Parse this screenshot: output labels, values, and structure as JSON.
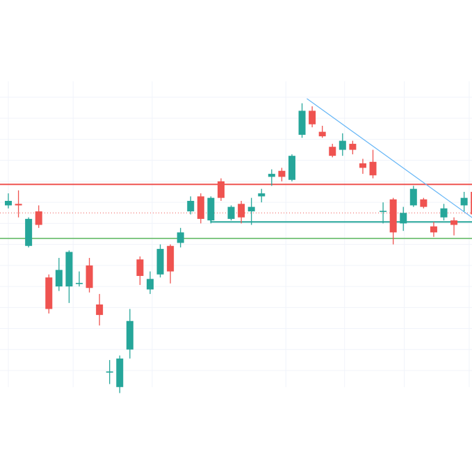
{
  "chart_data": {
    "type": "candlestick",
    "title": "",
    "xlabel": "",
    "ylabel": "",
    "grid": true,
    "ylim": [
      0,
      100
    ],
    "y_gridlines": [
      3,
      10,
      17,
      24,
      31,
      38,
      45,
      52,
      59,
      66,
      73,
      80,
      87,
      94,
      100
    ],
    "x_gridlines": [
      0.0,
      6.4,
      14.2,
      27.4,
      33.2,
      39.1,
      45.5
    ],
    "colors": {
      "up": "#26a69a",
      "down": "#ef5350"
    },
    "candles": [
      {
        "x": 0,
        "open": 58.0,
        "close": 59.5,
        "high": 62.0,
        "low": 57.0
      },
      {
        "x": 1,
        "open": 58.5,
        "close": 58.0,
        "high": 63.0,
        "low": 54.0
      },
      {
        "x": 2,
        "open": 44.5,
        "close": 53.5,
        "high": 54.0,
        "low": 44.0
      },
      {
        "x": 3,
        "open": 56.0,
        "close": 51.5,
        "high": 58.0,
        "low": 50.5
      },
      {
        "x": 4,
        "open": 34.0,
        "close": 23.5,
        "high": 35.0,
        "low": 22.0
      },
      {
        "x": 5,
        "open": 31.0,
        "close": 36.5,
        "high": 40.5,
        "low": 29.5
      },
      {
        "x": 6,
        "open": 31.0,
        "close": 42.5,
        "high": 43.0,
        "low": 25.5
      },
      {
        "x": 7,
        "open": 32.0,
        "close": 32.0,
        "high": 36.0,
        "low": 31.0
      },
      {
        "x": 8,
        "open": 38.0,
        "close": 30.5,
        "high": 40.5,
        "low": 29.0
      },
      {
        "x": 9,
        "open": 25.0,
        "close": 21.5,
        "high": 28.5,
        "low": 18.0
      },
      {
        "x": 10,
        "open": 2.5,
        "close": 2.5,
        "high": 6.5,
        "low": -1.5
      },
      {
        "x": 11,
        "open": -2.5,
        "close": 7.0,
        "high": 8.0,
        "low": -4.5
      },
      {
        "x": 12,
        "open": 10.0,
        "close": 19.5,
        "high": 23.5,
        "low": 7.0
      },
      {
        "x": 13,
        "open": 40.0,
        "close": 34.5,
        "high": 41.0,
        "low": 31.5
      },
      {
        "x": 14,
        "open": 30.0,
        "close": 33.5,
        "high": 36.0,
        "low": 28.5
      },
      {
        "x": 15,
        "open": 35.0,
        "close": 43.5,
        "high": 45.0,
        "low": 34.0
      },
      {
        "x": 16,
        "open": 44.5,
        "close": 36.0,
        "high": 45.0,
        "low": 32.0
      },
      {
        "x": 17,
        "open": 45.5,
        "close": 49.0,
        "high": 50.5,
        "low": 44.0
      },
      {
        "x": 18,
        "open": 56.0,
        "close": 59.5,
        "high": 61.0,
        "low": 55.0
      },
      {
        "x": 19,
        "open": 61.0,
        "close": 53.5,
        "high": 62.0,
        "low": 52.0
      },
      {
        "x": 20,
        "open": 53.0,
        "close": 60.5,
        "high": 61.0,
        "low": 52.0
      },
      {
        "x": 21,
        "open": 66.0,
        "close": 60.5,
        "high": 67.0,
        "low": 59.5
      },
      {
        "x": 22,
        "open": 53.5,
        "close": 57.5,
        "high": 58.0,
        "low": 53.0
      },
      {
        "x": 23,
        "open": 58.5,
        "close": 54.0,
        "high": 59.5,
        "low": 52.0
      },
      {
        "x": 24,
        "open": 56.0,
        "close": 57.5,
        "high": 60.5,
        "low": 51.5
      },
      {
        "x": 25,
        "open": 61.0,
        "close": 62.0,
        "high": 63.5,
        "low": 59.0
      },
      {
        "x": 26,
        "open": 67.5,
        "close": 68.5,
        "high": 70.0,
        "low": 64.5
      },
      {
        "x": 27,
        "open": 69.5,
        "close": 67.5,
        "high": 70.5,
        "low": 66.0
      },
      {
        "x": 28,
        "open": 66.5,
        "close": 74.5,
        "high": 75.0,
        "low": 66.0
      },
      {
        "x": 29,
        "open": 81.5,
        "close": 89.5,
        "high": 92.0,
        "low": 80.5
      },
      {
        "x": 30,
        "open": 89.5,
        "close": 85.0,
        "high": 91.0,
        "low": 84.0
      },
      {
        "x": 31,
        "open": 82.5,
        "close": 81.0,
        "high": 84.5,
        "low": 80.5
      },
      {
        "x": 32,
        "open": 77.5,
        "close": 74.5,
        "high": 78.5,
        "low": 74.0
      },
      {
        "x": 33,
        "open": 76.5,
        "close": 79.5,
        "high": 82.0,
        "low": 74.5
      },
      {
        "x": 34,
        "open": 78.5,
        "close": 76.5,
        "high": 79.5,
        "low": 75.0
      },
      {
        "x": 35,
        "open": 72.0,
        "close": 70.5,
        "high": 73.5,
        "low": 68.5
      },
      {
        "x": 36,
        "open": 72.5,
        "close": 68.0,
        "high": 76.5,
        "low": 67.0
      },
      {
        "x": 37,
        "open": 56.0,
        "close": 56.0,
        "high": 59.0,
        "low": 52.0
      },
      {
        "x": 38,
        "open": 60.0,
        "close": 49.0,
        "high": 60.5,
        "low": 45.0
      },
      {
        "x": 39,
        "open": 52.0,
        "close": 55.5,
        "high": 57.5,
        "low": 49.5
      },
      {
        "x": 40,
        "open": 58.0,
        "close": 63.5,
        "high": 64.5,
        "low": 57.5
      },
      {
        "x": 41,
        "open": 60.0,
        "close": 57.5,
        "high": 60.5,
        "low": 57.0
      },
      {
        "x": 42,
        "open": 51.0,
        "close": 49.0,
        "high": 52.5,
        "low": 47.5
      },
      {
        "x": 43,
        "open": 54.0,
        "close": 57.0,
        "high": 58.5,
        "low": 53.0
      },
      {
        "x": 44,
        "open": 53.0,
        "close": 51.5,
        "high": 54.0,
        "low": 48.0
      },
      {
        "x": 45,
        "open": 58.0,
        "close": 60.5,
        "high": 62.5,
        "low": 56.0
      },
      {
        "x": 46,
        "open": 62.5,
        "close": 55.0,
        "high": 64.5,
        "low": 54.0
      }
    ],
    "overlays": [
      {
        "kind": "hline",
        "y": 65.0,
        "color": "#ef5350",
        "style": "solid"
      },
      {
        "kind": "hline",
        "y": 47.0,
        "color": "#81c784",
        "style": "solid"
      },
      {
        "kind": "hline",
        "y": 55.5,
        "color": "#ef5350",
        "style": "dotted"
      },
      {
        "kind": "segment",
        "x1": 20.0,
        "y1": 52.5,
        "x2": 47.0,
        "y2": 52.5,
        "color": "#26a69a"
      },
      {
        "kind": "segment",
        "x1": 20.0,
        "y1": 52.5,
        "x2": 20.0,
        "y2": 54.5,
        "color": "#26a69a"
      },
      {
        "kind": "trendline",
        "x1": 29.5,
        "y1": 93.5,
        "x2": 47.0,
        "y2": 51.0,
        "color": "#64b5f6"
      }
    ]
  }
}
